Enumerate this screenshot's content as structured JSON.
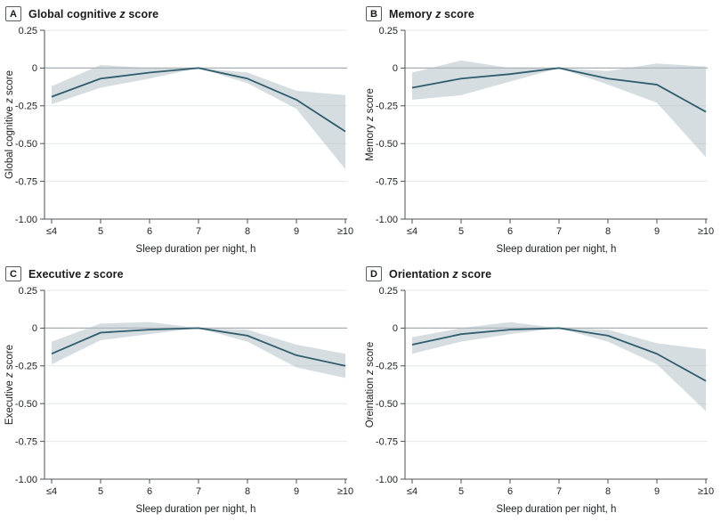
{
  "figure": {
    "background": "#ffffff",
    "colors": {
      "line": "#2f5d6d",
      "band": "#aebcc4",
      "band_opacity": 0.5,
      "grid": "#e4e7e8",
      "zero_line": "#a8aeb1",
      "axis": "#4d5254",
      "text": "#202324"
    }
  },
  "chart_data": [
    {
      "type": "line",
      "panel_label": "A",
      "title": "Global cognitive z score",
      "xlabel": "Sleep duration per night, h",
      "ylabel": "Global cognitive z score",
      "categories": [
        "≤4",
        "5",
        "6",
        "7",
        "8",
        "9",
        "≥10"
      ],
      "yticks": [
        "0.25",
        "0",
        "-0.25",
        "-0.50",
        "-0.75",
        "-1.00"
      ],
      "ytick_values": [
        0.25,
        0,
        -0.25,
        -0.5,
        -0.75,
        -1.0
      ],
      "ylim": [
        -1.0,
        0.25
      ],
      "grid": true,
      "legend": "none",
      "values": [
        -0.19,
        -0.07,
        -0.03,
        0,
        -0.07,
        -0.21,
        -0.42
      ],
      "ci_upper": [
        -0.12,
        0.02,
        0.0,
        0,
        -0.03,
        -0.15,
        -0.18
      ],
      "ci_lower": [
        -0.24,
        -0.13,
        -0.07,
        0,
        -0.1,
        -0.27,
        -0.67
      ]
    },
    {
      "type": "line",
      "panel_label": "B",
      "title": "Memory z score",
      "xlabel": "Sleep duration per night, h",
      "ylabel": "Memory z score",
      "categories": [
        "≤4",
        "5",
        "6",
        "7",
        "8",
        "9",
        "≥10"
      ],
      "yticks": [
        "0.25",
        "0",
        "-0.25",
        "-0.50",
        "-0.75",
        "-1.00"
      ],
      "ytick_values": [
        0.25,
        0,
        -0.25,
        -0.5,
        -0.75,
        -1.0
      ],
      "ylim": [
        -1.0,
        0.25
      ],
      "grid": true,
      "legend": "none",
      "values": [
        -0.13,
        -0.07,
        -0.04,
        0,
        -0.07,
        -0.11,
        -0.29
      ],
      "ci_upper": [
        -0.03,
        0.05,
        0.0,
        0,
        -0.02,
        0.03,
        0.01
      ],
      "ci_lower": [
        -0.21,
        -0.18,
        -0.09,
        0,
        -0.11,
        -0.23,
        -0.59
      ]
    },
    {
      "type": "line",
      "panel_label": "C",
      "title": "Executive z score",
      "xlabel": "Sleep duration per night, h",
      "ylabel": "Executive z score",
      "categories": [
        "≤4",
        "5",
        "6",
        "7",
        "8",
        "9",
        "≥10"
      ],
      "yticks": [
        "0.25",
        "0",
        "-0.25",
        "-0.50",
        "-0.75",
        "-1.00"
      ],
      "ytick_values": [
        0.25,
        0,
        -0.25,
        -0.5,
        -0.75,
        -1.0
      ],
      "ylim": [
        -1.0,
        0.25
      ],
      "grid": true,
      "legend": "none",
      "values": [
        -0.17,
        -0.03,
        -0.01,
        0,
        -0.05,
        -0.18,
        -0.25
      ],
      "ci_upper": [
        -0.09,
        0.03,
        0.04,
        0,
        -0.01,
        -0.11,
        -0.17
      ],
      "ci_lower": [
        -0.24,
        -0.08,
        -0.04,
        0,
        -0.09,
        -0.26,
        -0.33
      ]
    },
    {
      "type": "line",
      "panel_label": "D",
      "title": "Orientation z score",
      "xlabel": "Sleep duration per night, h",
      "ylabel": "Oreintation z score",
      "categories": [
        "≤4",
        "5",
        "6",
        "7",
        "8",
        "9",
        "≥10"
      ],
      "yticks": [
        "0.25",
        "0",
        "-0.25",
        "-0.50",
        "-0.75",
        "-1.00"
      ],
      "ytick_values": [
        0.25,
        0,
        -0.25,
        -0.5,
        -0.75,
        -1.0
      ],
      "ylim": [
        -1.0,
        0.25
      ],
      "grid": true,
      "legend": "none",
      "values": [
        -0.11,
        -0.04,
        -0.01,
        0,
        -0.05,
        -0.17,
        -0.35
      ],
      "ci_upper": [
        -0.06,
        0.0,
        0.04,
        0,
        -0.01,
        -0.1,
        -0.14
      ],
      "ci_lower": [
        -0.17,
        -0.09,
        -0.04,
        0,
        -0.09,
        -0.24,
        -0.55
      ]
    }
  ]
}
